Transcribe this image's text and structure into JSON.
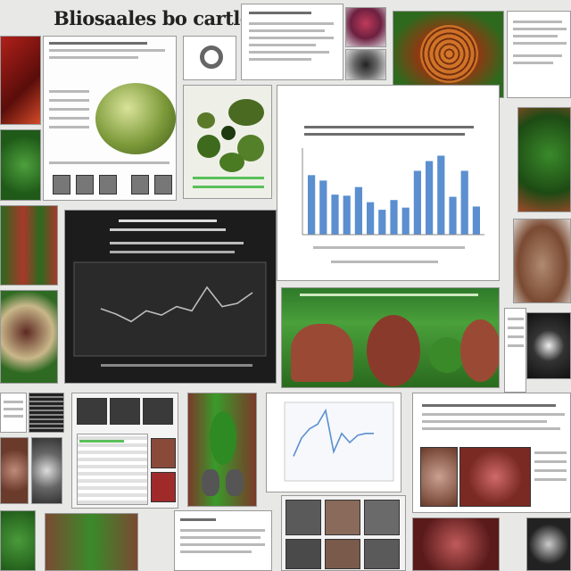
{
  "page": {
    "title": "Bliosaales bo cartlety",
    "colors": {
      "background": "#e8e8e6",
      "leaf_green": "#3f8f2e",
      "rust": "#8b3a2a",
      "chart_blue": "#5b8fd0",
      "dark_panel": "#1c1c1c"
    }
  },
  "collage": {
    "tiles": [
      {
        "name": "leaf-close-up",
        "icon": "leaf-image"
      },
      {
        "name": "fruit-specimen-sheet",
        "icon": "specimen-image"
      },
      {
        "name": "moss-cluster-panel",
        "icon": "moss-image"
      },
      {
        "name": "pod-texture-image",
        "icon": "texture-image"
      },
      {
        "name": "bar-chart-panel",
        "icon": "bar-chart"
      },
      {
        "name": "dark-line-chart-panel",
        "icon": "line-chart"
      },
      {
        "name": "green-landscape-panel",
        "icon": "specimen-image"
      },
      {
        "name": "spike-line-chart-panel",
        "icon": "line-chart"
      },
      {
        "name": "sample-thumbnail-grid",
        "icon": "thumbnail-grid"
      },
      {
        "name": "text-report-panel",
        "icon": "document"
      }
    ]
  },
  "chart_data": [
    {
      "type": "bar",
      "values": [
        55,
        50,
        37,
        36,
        44,
        30,
        23,
        32,
        25,
        59,
        68,
        73,
        35,
        59,
        26
      ],
      "ylim": [
        0,
        80
      ]
    },
    {
      "type": "line",
      "values": [
        40,
        35,
        28,
        38,
        34,
        42,
        38,
        60,
        42,
        45,
        55
      ],
      "ylim": [
        0,
        80
      ]
    },
    {
      "type": "line",
      "values": [
        25,
        45,
        55,
        60,
        75,
        30,
        50,
        40,
        48,
        50,
        50
      ],
      "ylim": [
        0,
        80
      ]
    }
  ]
}
